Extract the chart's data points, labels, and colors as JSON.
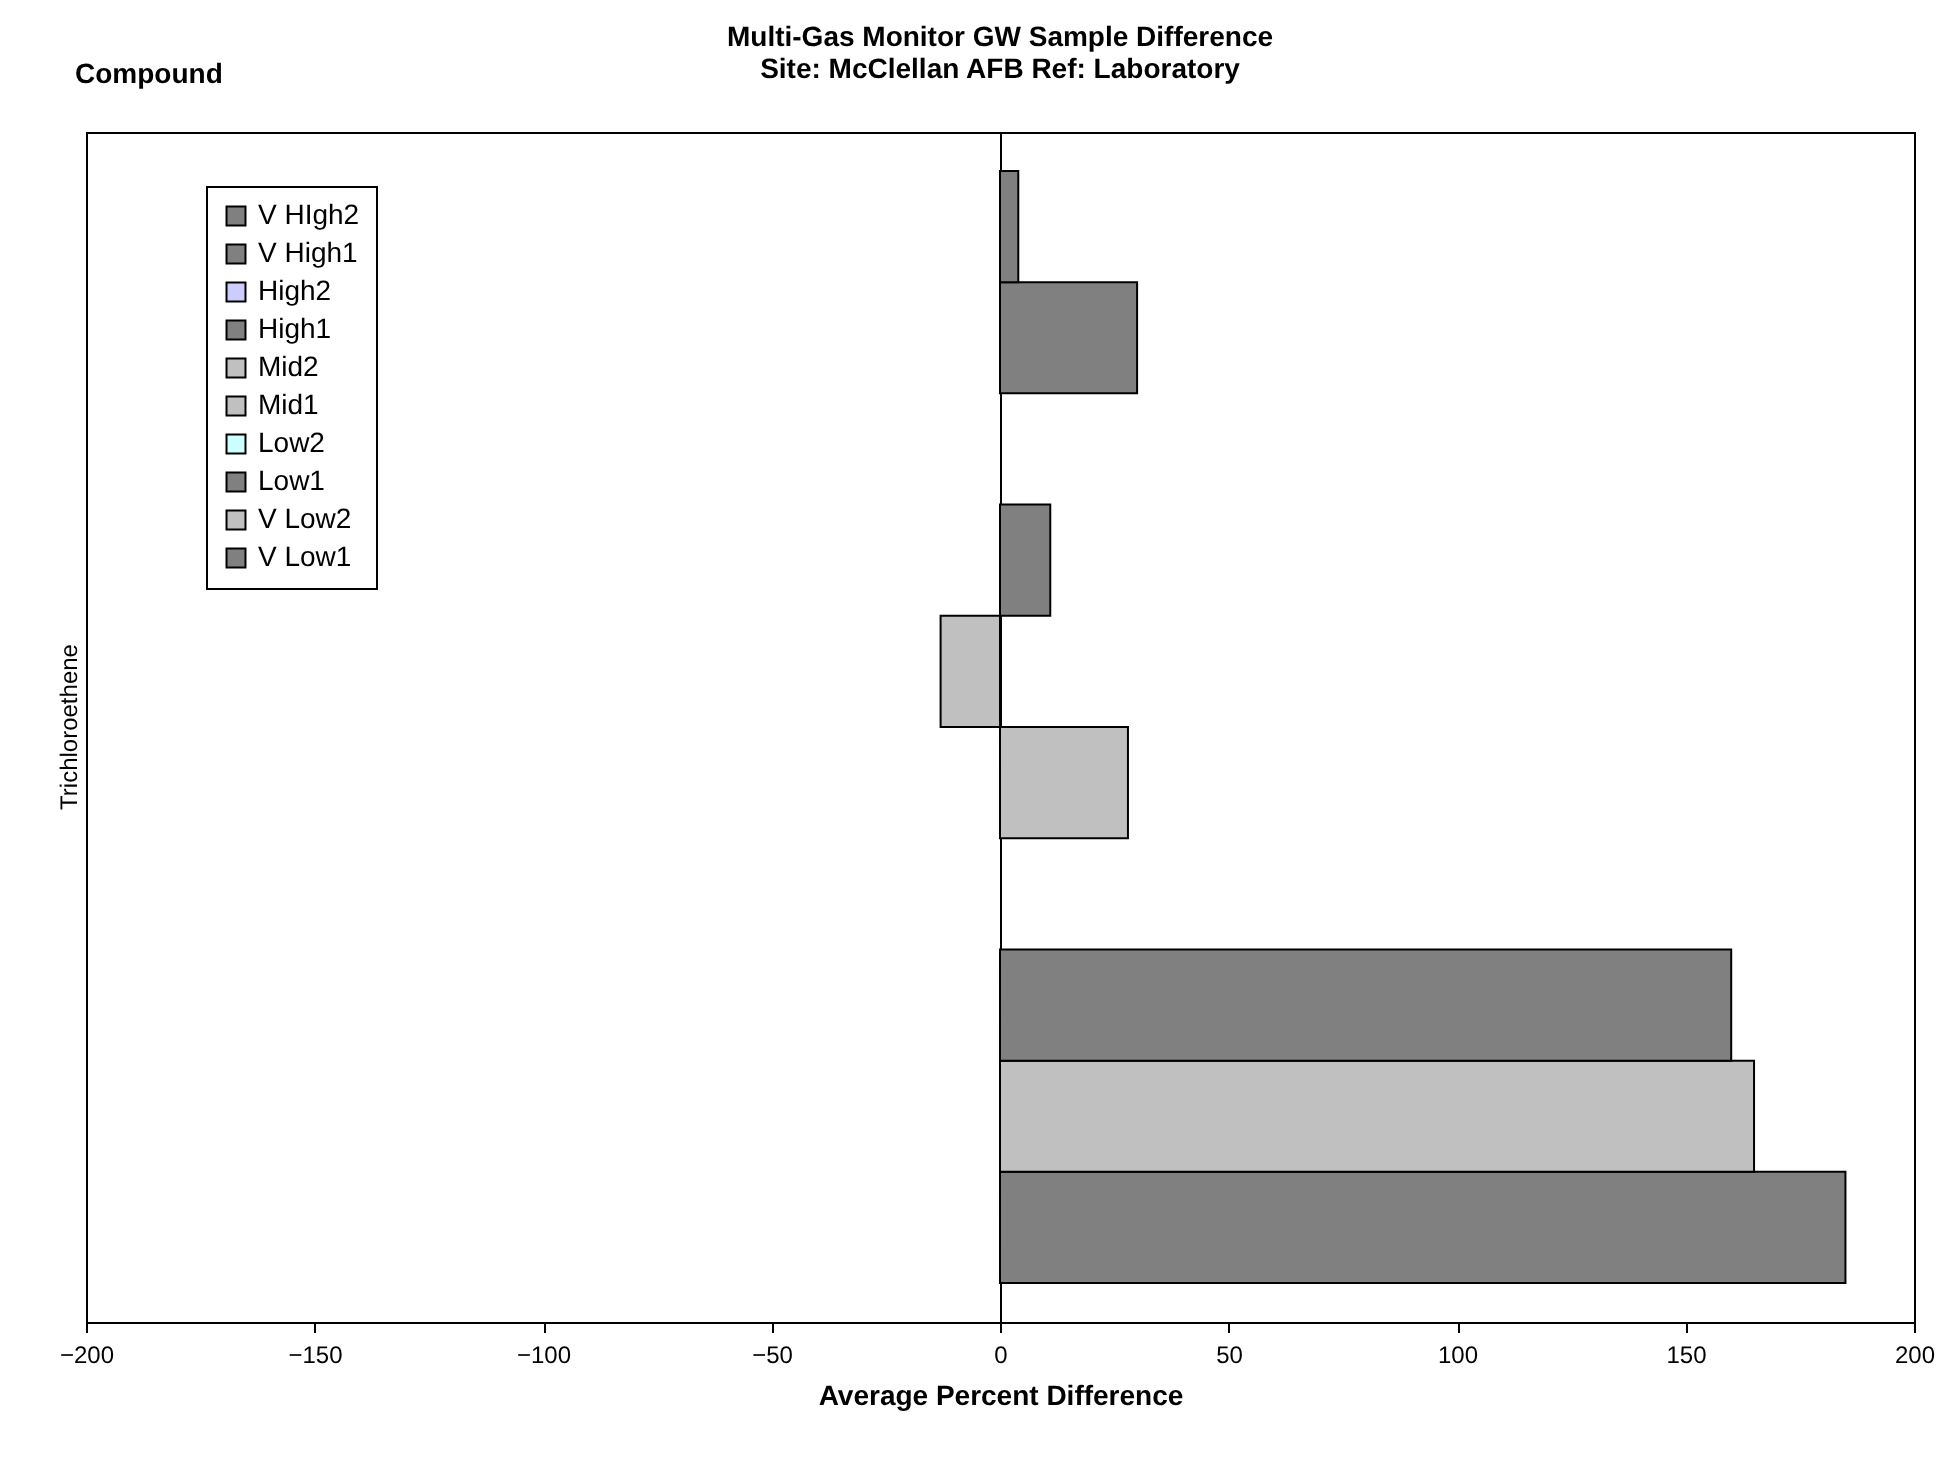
{
  "chart_data": {
    "type": "bar",
    "orientation": "horizontal",
    "title": "Multi-Gas Monitor  GW Sample Difference",
    "subtitle": "Site:  McClellan AFB  Ref:  Laboratory",
    "xlabel": "Average Percent Difference",
    "ylabel": "Compound",
    "categories": [
      "Trichloroethene"
    ],
    "series": [
      {
        "name": "V Low1",
        "color": "#808080",
        "values": [
          185
        ]
      },
      {
        "name": "V Low2",
        "color": "#c0c0c0",
        "values": [
          165
        ]
      },
      {
        "name": "Low1",
        "color": "#808080",
        "values": [
          160
        ]
      },
      {
        "name": "Low2",
        "color": "#ccffff",
        "values": [
          null
        ]
      },
      {
        "name": "Mid1",
        "color": "#c0c0c0",
        "values": [
          28
        ]
      },
      {
        "name": "Mid2",
        "color": "#c0c0c0",
        "values": [
          -13
        ]
      },
      {
        "name": "High1",
        "color": "#808080",
        "values": [
          11
        ]
      },
      {
        "name": "High2",
        "color": "#ccccff",
        "values": [
          null
        ]
      },
      {
        "name": "V High1",
        "color": "#808080",
        "values": [
          30
        ]
      },
      {
        "name": "V HIgh2",
        "color": "#808080",
        "values": [
          4
        ]
      }
    ],
    "xlim": [
      -200,
      200
    ],
    "xticks": [
      -200,
      -150,
      -100,
      -50,
      0,
      50,
      100,
      150,
      200
    ],
    "legend": "top left"
  }
}
